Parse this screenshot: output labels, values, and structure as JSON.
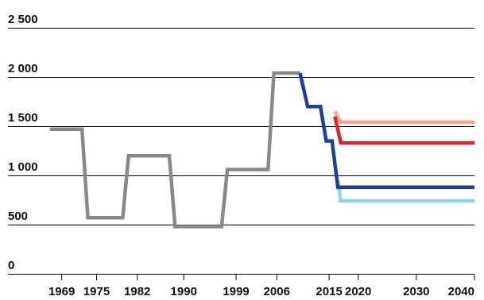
{
  "chart_data": {
    "type": "line",
    "title": "",
    "xlabel": "",
    "ylabel": "",
    "ylim": [
      0,
      2500
    ],
    "yticks": [
      0,
      500,
      1000,
      1500,
      2000,
      2500
    ],
    "ytick_labels": [
      "0",
      "500",
      "1 000",
      "1 500",
      "2 000",
      "2 500"
    ],
    "xlim": [
      1967,
      2040
    ],
    "xticks": [
      1969,
      1975,
      1982,
      1990,
      1999,
      2006,
      2015,
      2020,
      2030,
      2040
    ],
    "xtick_labels": [
      "1969",
      "1975",
      "1982",
      "1990",
      "1999",
      "2006",
      "2015",
      "2020",
      "2030",
      "2040"
    ],
    "grid": "horizontal",
    "legend": "none",
    "series": [
      {
        "color": "#f4a58a",
        "points": [
          [
            2016,
            1650
          ],
          [
            2017,
            1540
          ],
          [
            2040,
            1540
          ]
        ]
      },
      {
        "color": "#e1222a",
        "points": [
          [
            2016,
            1600
          ],
          [
            2017,
            1330
          ],
          [
            2040,
            1330
          ]
        ]
      },
      {
        "color": "#88d4f2",
        "points": [
          [
            2016.5,
            950
          ],
          [
            2017,
            740
          ],
          [
            2040,
            740
          ]
        ]
      },
      {
        "color": "#888888",
        "points": [
          [
            1967,
            1470
          ],
          [
            1972.5,
            1470
          ],
          [
            1973.5,
            570
          ],
          [
            1979.5,
            570
          ],
          [
            1980.5,
            1200
          ],
          [
            1987.5,
            1200
          ],
          [
            1988.5,
            480
          ],
          [
            1996.5,
            480
          ],
          [
            1997.5,
            1060
          ],
          [
            2004.5,
            1060
          ],
          [
            2005.5,
            2040
          ],
          [
            2010,
            2040
          ]
        ]
      },
      {
        "color": "#1f3d99",
        "points": [
          [
            2010,
            2040
          ],
          [
            2011.3,
            1700
          ],
          [
            2013.5,
            1700
          ],
          [
            2014.5,
            1350
          ],
          [
            2015.5,
            1350
          ],
          [
            2016.5,
            880
          ],
          [
            2040,
            880
          ]
        ]
      }
    ]
  }
}
